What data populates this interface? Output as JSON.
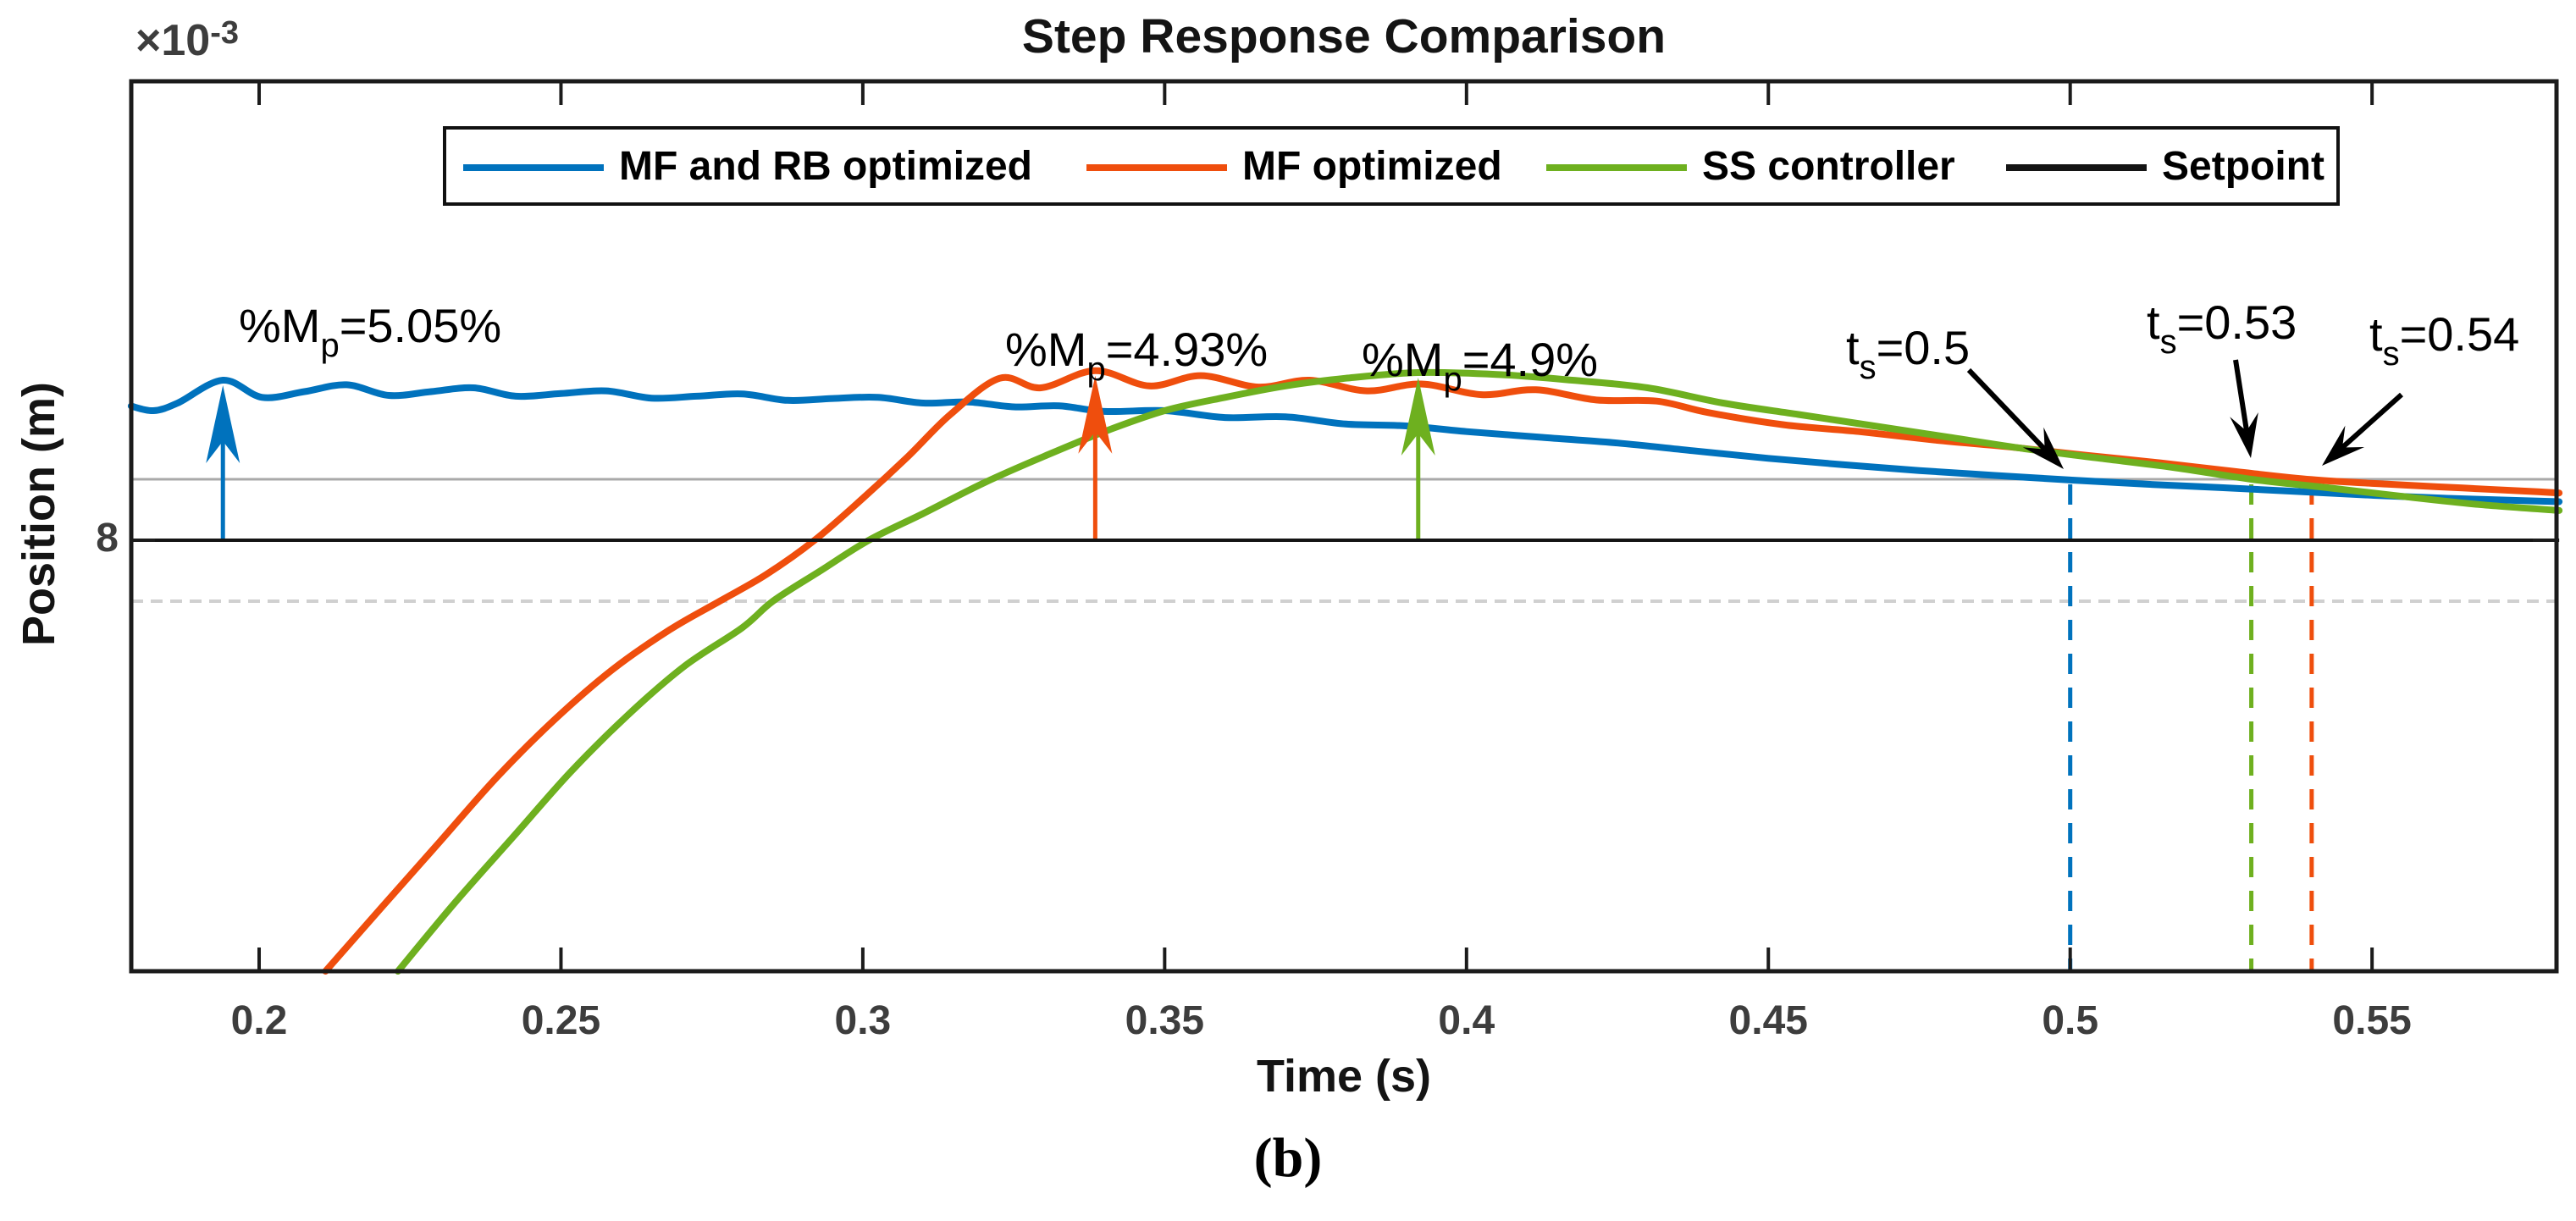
{
  "figure": {
    "caption": "(b)"
  },
  "chart": {
    "title": "Step Response Comparison",
    "xlabel": "Time (s)",
    "ylabel": "Position (m)",
    "y_offset_label": {
      "prefix": "×10",
      "exponent": "-3"
    }
  },
  "legend": {
    "items": [
      {
        "label": "MF and RB optimized",
        "color": "#0072BD"
      },
      {
        "label": "MF optimized",
        "color": "#EF4E0D"
      },
      {
        "label": "SS controller",
        "color": "#6EB01F"
      },
      {
        "label": "Setpoint",
        "color": "#141414"
      }
    ]
  },
  "chart_data": {
    "type": "line",
    "title": "Step Response Comparison",
    "xlabel": "Time (s)",
    "ylabel": "Position (m)",
    "y_unit_multiplier": "1e-3",
    "xlim": [
      0.179,
      0.581
    ],
    "ylim": [
      6.87,
      9.2
    ],
    "x_ticks": [
      0.2,
      0.25,
      0.3,
      0.35,
      0.4,
      0.45,
      0.5,
      0.55
    ],
    "y_ticks": [
      {
        "value": 8,
        "label": "8"
      }
    ],
    "grid": false,
    "legend_position": "top-inside",
    "setpoint_value": 8.0,
    "tolerance_band": {
      "upper": 8.16,
      "lower": 7.84,
      "upper_style": "solid-gray",
      "lower_style": "dotted-gray",
      "upper_color": "#A9A9A9",
      "lower_color": "#D0D0D0"
    },
    "series": [
      {
        "name": "MF and RB optimized",
        "color": "#0072BD",
        "points": [
          [
            0.1788,
            8.352
          ],
          [
            0.1825,
            8.34
          ],
          [
            0.1865,
            8.36
          ],
          [
            0.194,
            8.42
          ],
          [
            0.2005,
            8.375
          ],
          [
            0.2075,
            8.39
          ],
          [
            0.2145,
            8.408
          ],
          [
            0.2215,
            8.38
          ],
          [
            0.2285,
            8.39
          ],
          [
            0.2355,
            8.4
          ],
          [
            0.2425,
            8.378
          ],
          [
            0.25,
            8.385
          ],
          [
            0.2575,
            8.392
          ],
          [
            0.265,
            8.373
          ],
          [
            0.2725,
            8.378
          ],
          [
            0.28,
            8.384
          ],
          [
            0.2875,
            8.367
          ],
          [
            0.295,
            8.372
          ],
          [
            0.3025,
            8.375
          ],
          [
            0.31,
            8.36
          ],
          [
            0.3175,
            8.363
          ],
          [
            0.325,
            8.35
          ],
          [
            0.3325,
            8.353
          ],
          [
            0.34,
            8.338
          ],
          [
            0.35,
            8.34
          ],
          [
            0.36,
            8.322
          ],
          [
            0.37,
            8.324
          ],
          [
            0.38,
            8.305
          ],
          [
            0.39,
            8.3
          ],
          [
            0.4,
            8.285
          ],
          [
            0.4125,
            8.27
          ],
          [
            0.425,
            8.255
          ],
          [
            0.4375,
            8.235
          ],
          [
            0.45,
            8.215
          ],
          [
            0.4625,
            8.198
          ],
          [
            0.475,
            8.183
          ],
          [
            0.4875,
            8.17
          ],
          [
            0.5,
            8.158
          ],
          [
            0.5125,
            8.147
          ],
          [
            0.525,
            8.138
          ],
          [
            0.5375,
            8.128
          ],
          [
            0.55,
            8.118
          ],
          [
            0.5625,
            8.11
          ],
          [
            0.575,
            8.104
          ],
          [
            0.581,
            8.101
          ]
        ]
      },
      {
        "name": "MF optimized",
        "color": "#EF4E0D",
        "points": [
          [
            0.211,
            6.869
          ],
          [
            0.2205,
            7.04
          ],
          [
            0.23,
            7.21
          ],
          [
            0.2395,
            7.38
          ],
          [
            0.249,
            7.53
          ],
          [
            0.2585,
            7.66
          ],
          [
            0.268,
            7.765
          ],
          [
            0.2763,
            7.84
          ],
          [
            0.284,
            7.91
          ],
          [
            0.292,
            8.0
          ],
          [
            0.3,
            8.11
          ],
          [
            0.3075,
            8.22
          ],
          [
            0.3145,
            8.33
          ],
          [
            0.3227,
            8.425
          ],
          [
            0.3295,
            8.4
          ],
          [
            0.3385,
            8.445
          ],
          [
            0.3475,
            8.405
          ],
          [
            0.356,
            8.432
          ],
          [
            0.3655,
            8.402
          ],
          [
            0.374,
            8.42
          ],
          [
            0.3835,
            8.392
          ],
          [
            0.3925,
            8.41
          ],
          [
            0.4025,
            8.382
          ],
          [
            0.4115,
            8.395
          ],
          [
            0.4215,
            8.368
          ],
          [
            0.4315,
            8.365
          ],
          [
            0.44,
            8.335
          ],
          [
            0.4525,
            8.303
          ],
          [
            0.465,
            8.285
          ],
          [
            0.4775,
            8.263
          ],
          [
            0.49,
            8.245
          ],
          [
            0.5025,
            8.223
          ],
          [
            0.515,
            8.203
          ],
          [
            0.5275,
            8.18
          ],
          [
            0.54,
            8.159
          ],
          [
            0.5525,
            8.147
          ],
          [
            0.565,
            8.137
          ],
          [
            0.5775,
            8.127
          ],
          [
            0.581,
            8.124
          ]
        ]
      },
      {
        "name": "SS controller",
        "color": "#6EB01F",
        "points": [
          [
            0.223,
            6.869
          ],
          [
            0.2325,
            7.05
          ],
          [
            0.242,
            7.22
          ],
          [
            0.2515,
            7.39
          ],
          [
            0.261,
            7.54
          ],
          [
            0.2705,
            7.67
          ],
          [
            0.28,
            7.77
          ],
          [
            0.2851,
            7.84
          ],
          [
            0.293,
            7.92
          ],
          [
            0.301,
            8.0
          ],
          [
            0.31,
            8.07
          ],
          [
            0.32,
            8.15
          ],
          [
            0.33,
            8.22
          ],
          [
            0.34,
            8.285
          ],
          [
            0.35,
            8.34
          ],
          [
            0.36,
            8.375
          ],
          [
            0.37,
            8.405
          ],
          [
            0.38,
            8.425
          ],
          [
            0.392,
            8.44
          ],
          [
            0.405,
            8.435
          ],
          [
            0.4175,
            8.42
          ],
          [
            0.43,
            8.4
          ],
          [
            0.4425,
            8.36
          ],
          [
            0.455,
            8.33
          ],
          [
            0.4675,
            8.3
          ],
          [
            0.48,
            8.27
          ],
          [
            0.4925,
            8.24
          ],
          [
            0.505,
            8.215
          ],
          [
            0.5175,
            8.19
          ],
          [
            0.53,
            8.16
          ],
          [
            0.5425,
            8.138
          ],
          [
            0.555,
            8.115
          ],
          [
            0.5675,
            8.094
          ],
          [
            0.581,
            8.078
          ]
        ]
      },
      {
        "name": "Setpoint",
        "color": "#141414",
        "points": [
          [
            0.1788,
            8.0
          ],
          [
            0.581,
            8.0
          ]
        ]
      }
    ],
    "overshoot_annotations": [
      {
        "pre": "%M",
        "sub": "p",
        "post": "=5.05%",
        "series": "MF and RB optimized",
        "peak_t": 0.194,
        "peak_v": 8.42,
        "color": "#0072BD"
      },
      {
        "pre": "%M",
        "sub": "p",
        "post": "=4.93%",
        "series": "MF optimized",
        "peak_t": 0.3385,
        "peak_v": 8.445,
        "color": "#EF4E0D"
      },
      {
        "pre": "%M",
        "sub": "p",
        "post": "=4.9%",
        "series": "SS controller",
        "peak_t": 0.392,
        "peak_v": 8.44,
        "color": "#6EB01F"
      }
    ],
    "settling_annotations": [
      {
        "pre": "t",
        "sub": "s",
        "post": "=0.5",
        "t": 0.5,
        "series": "MF and RB optimized",
        "color": "#0072BD"
      },
      {
        "pre": "t",
        "sub": "s",
        "post": "=0.53",
        "t": 0.53,
        "series": "SS controller",
        "color": "#6EB01F"
      },
      {
        "pre": "t",
        "sub": "s",
        "post": "=0.54",
        "t": 0.54,
        "series": "MF optimized",
        "color": "#EF4E0D"
      }
    ]
  }
}
